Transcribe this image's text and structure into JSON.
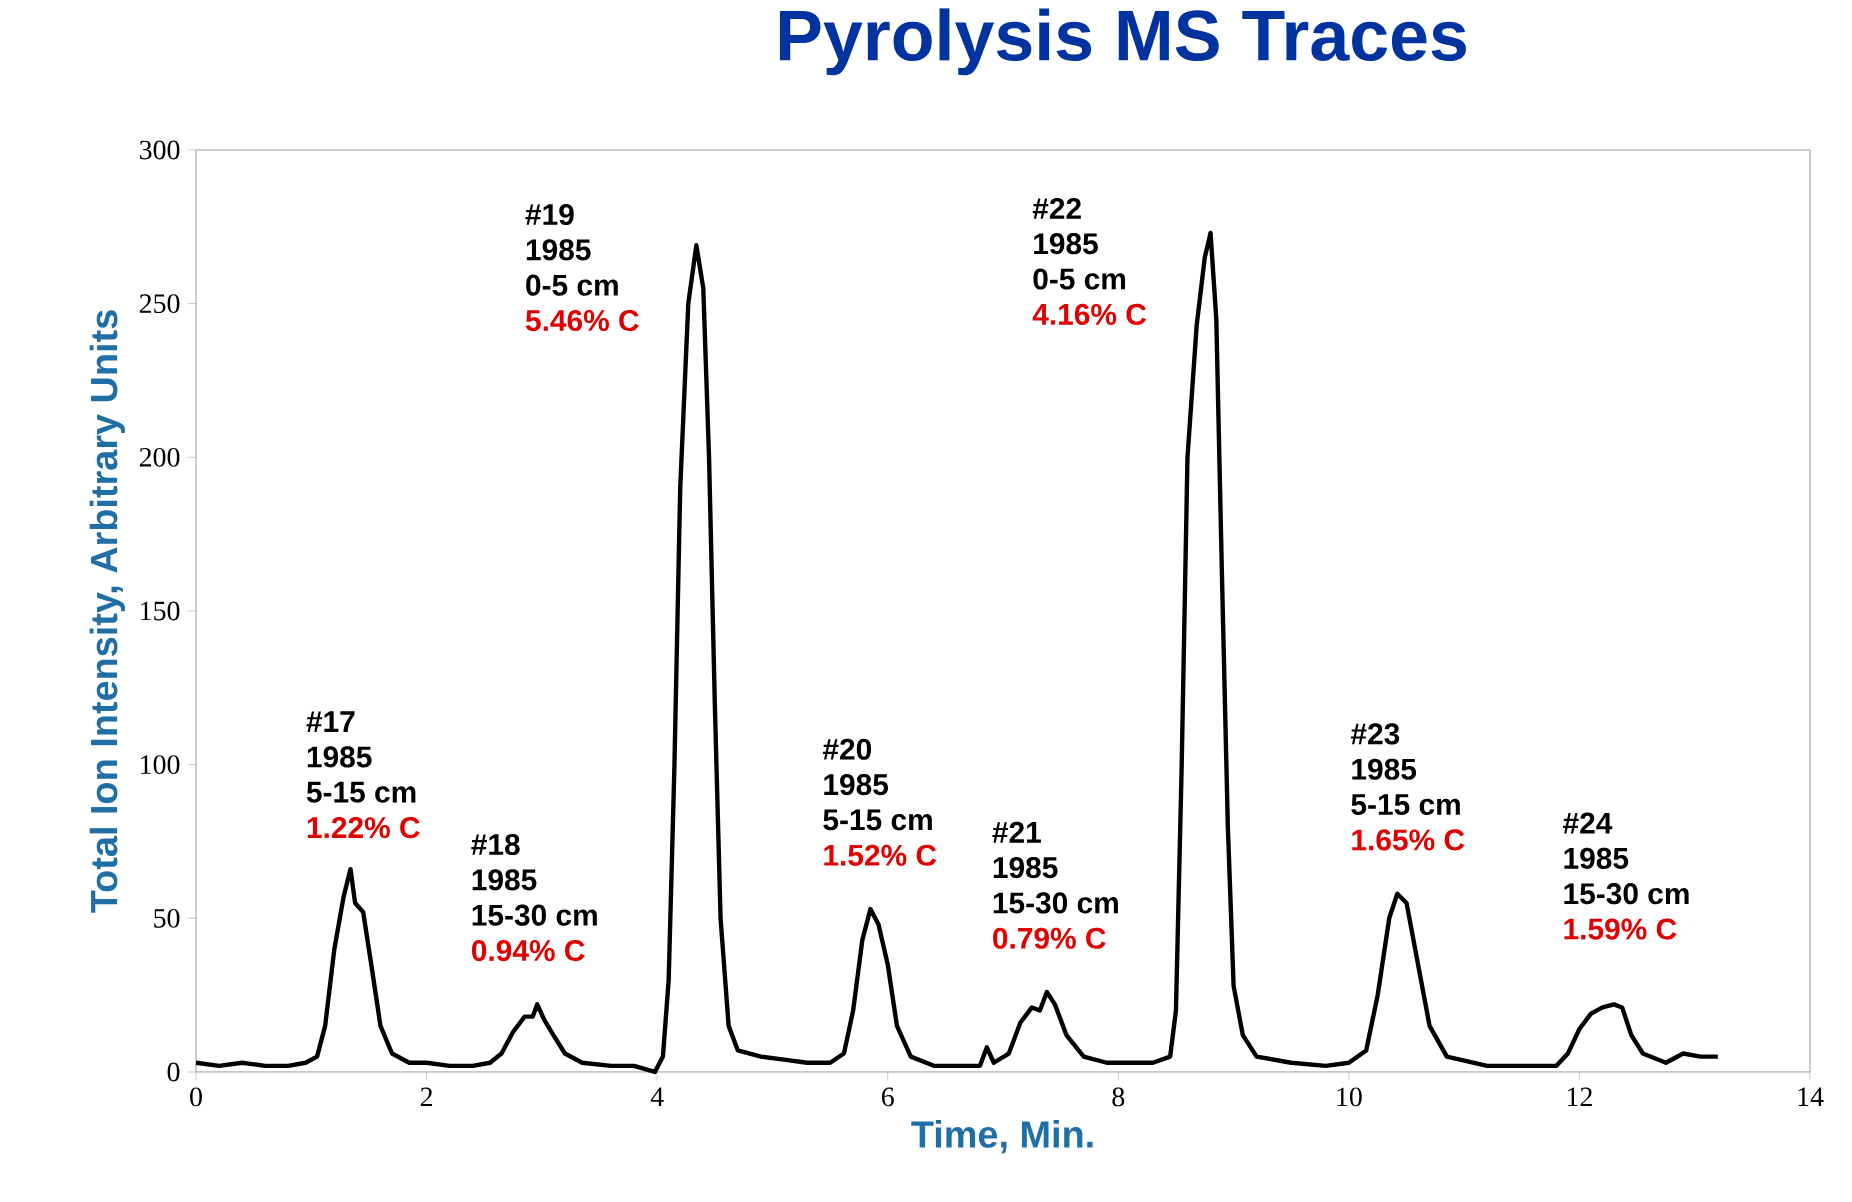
{
  "chart_data": {
    "type": "line",
    "title": "Pyrolysis MS Traces",
    "xlabel": "Time, Min.",
    "ylabel": "Total Ion Intensity, Arbitrary Units",
    "xlim": [
      0,
      14
    ],
    "xticks": [
      0,
      2,
      4,
      6,
      8,
      10,
      12,
      14
    ],
    "ylim": [
      0,
      300
    ],
    "yticks": [
      0,
      50,
      100,
      150,
      200,
      250,
      300
    ],
    "marker": "none",
    "line_style": "solid",
    "series": [
      {
        "color": "#000000",
        "x": [
          0,
          0.2,
          0.4,
          0.6,
          0.8,
          0.95,
          1.05,
          1.12,
          1.2,
          1.28,
          1.34,
          1.38,
          1.45,
          1.52,
          1.6,
          1.7,
          1.85,
          2.0,
          2.2,
          2.4,
          2.55,
          2.65,
          2.75,
          2.85,
          2.92,
          2.96,
          3.02,
          3.1,
          3.2,
          3.35,
          3.6,
          3.8,
          3.98,
          4.05,
          4.1,
          4.15,
          4.2,
          4.27,
          4.34,
          4.4,
          4.45,
          4.5,
          4.55,
          4.62,
          4.7,
          4.9,
          5.1,
          5.3,
          5.5,
          5.62,
          5.7,
          5.78,
          5.85,
          5.92,
          6.0,
          6.08,
          6.2,
          6.4,
          6.6,
          6.8,
          6.86,
          6.92,
          7.05,
          7.15,
          7.25,
          7.32,
          7.38,
          7.45,
          7.55,
          7.7,
          7.9,
          8.1,
          8.3,
          8.45,
          8.5,
          8.55,
          8.6,
          8.68,
          8.75,
          8.8,
          8.85,
          8.9,
          8.95,
          9.0,
          9.08,
          9.2,
          9.5,
          9.8,
          10.0,
          10.15,
          10.25,
          10.35,
          10.42,
          10.5,
          10.6,
          10.7,
          10.85,
          11.2,
          11.6,
          11.8,
          11.9,
          12.0,
          12.1,
          12.2,
          12.3,
          12.37,
          12.45,
          12.55,
          12.75,
          12.9,
          13.05,
          13.2
        ],
        "values": [
          3,
          2,
          3,
          2,
          2,
          3,
          5,
          15,
          40,
          57,
          66,
          55,
          52,
          35,
          15,
          6,
          3,
          3,
          2,
          2,
          3,
          6,
          13,
          18,
          18,
          22,
          17,
          12,
          6,
          3,
          2,
          2,
          0,
          5,
          30,
          100,
          190,
          250,
          269,
          255,
          200,
          120,
          50,
          15,
          7,
          5,
          4,
          3,
          3,
          6,
          20,
          43,
          53,
          48,
          35,
          15,
          5,
          2,
          2,
          2,
          8,
          3,
          6,
          16,
          21,
          20,
          26,
          22,
          12,
          5,
          3,
          3,
          3,
          5,
          20,
          100,
          200,
          243,
          265,
          273,
          245,
          160,
          80,
          28,
          12,
          5,
          3,
          2,
          3,
          7,
          25,
          50,
          58,
          55,
          35,
          15,
          5,
          2,
          2,
          2,
          6,
          14,
          19,
          21,
          22,
          21,
          12,
          6,
          3,
          6,
          5,
          5
        ]
      }
    ],
    "annotations": [
      "#17",
      "1985",
      "5-15 cm",
      "1.22% C",
      "#18",
      "1985",
      "15-30 cm",
      "0.94% C",
      "#19",
      "1985",
      "0-5 cm",
      "5.46% C",
      "#20",
      "1985",
      "5-15 cm",
      "1.52% C",
      "#21",
      "1985",
      "15-30 cm",
      "0.79% C",
      "#22",
      "1985",
      "0-5 cm",
      "4.16% C",
      "#23",
      "1985",
      "5-15 cm",
      "1.65% C",
      "#24",
      "1985",
      "15-30 cm",
      "1.59% C"
    ]
  }
}
